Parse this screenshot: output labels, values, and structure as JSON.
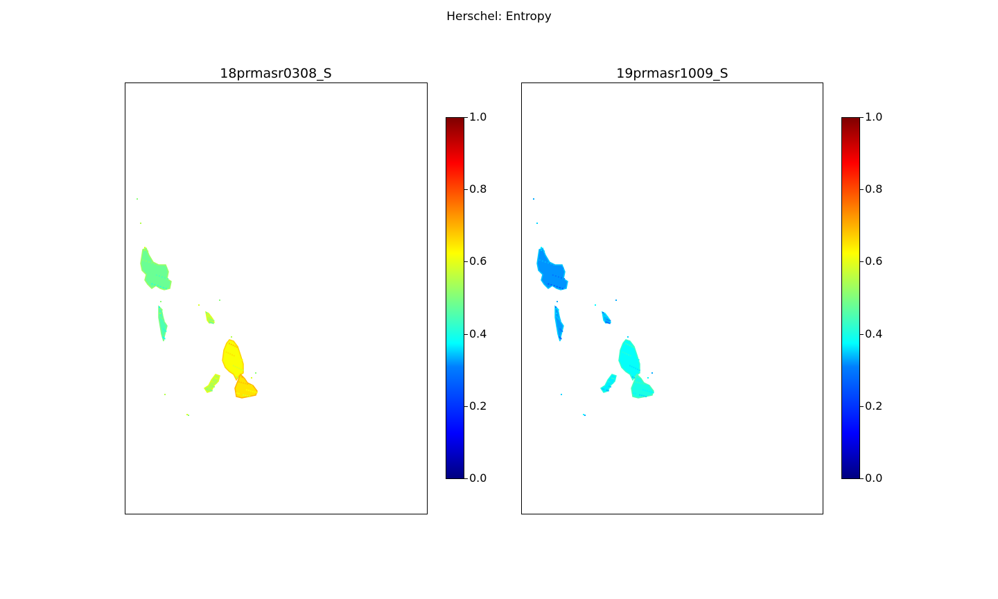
{
  "chart_data": {
    "suptitle": "Herschel: Entropy",
    "colormap": "jet",
    "colormap_colors": [
      "#00007f",
      "#0000ff",
      "#007fff",
      "#00ffff",
      "#7fff7f",
      "#ffff00",
      "#ff7f00",
      "#ff0000",
      "#7f0000"
    ],
    "panels": [
      {
        "type": "heatmap",
        "title": "18prmasr0308_S",
        "colorbar": {
          "vmin": 0.0,
          "vmax": 1.0,
          "ticks": [
            "0.0",
            "0.2",
            "0.4",
            "0.6",
            "0.8",
            "1.0"
          ]
        },
        "region_values": {
          "northwest_island": 0.48,
          "west_strip": 0.45,
          "central_islet": 0.55,
          "main_island": 0.62,
          "southwest_lobe": 0.55,
          "southeast_lobe": 0.65
        }
      },
      {
        "type": "heatmap",
        "title": "19prmasr1009_S",
        "colorbar": {
          "vmin": 0.0,
          "vmax": 1.0,
          "ticks": [
            "0.0",
            "0.2",
            "0.4",
            "0.6",
            "0.8",
            "1.0"
          ]
        },
        "region_values": {
          "northwest_island": 0.27,
          "west_strip": 0.28,
          "central_islet": 0.3,
          "main_island": 0.38,
          "southwest_lobe": 0.36,
          "southeast_lobe": 0.4
        }
      }
    ]
  }
}
